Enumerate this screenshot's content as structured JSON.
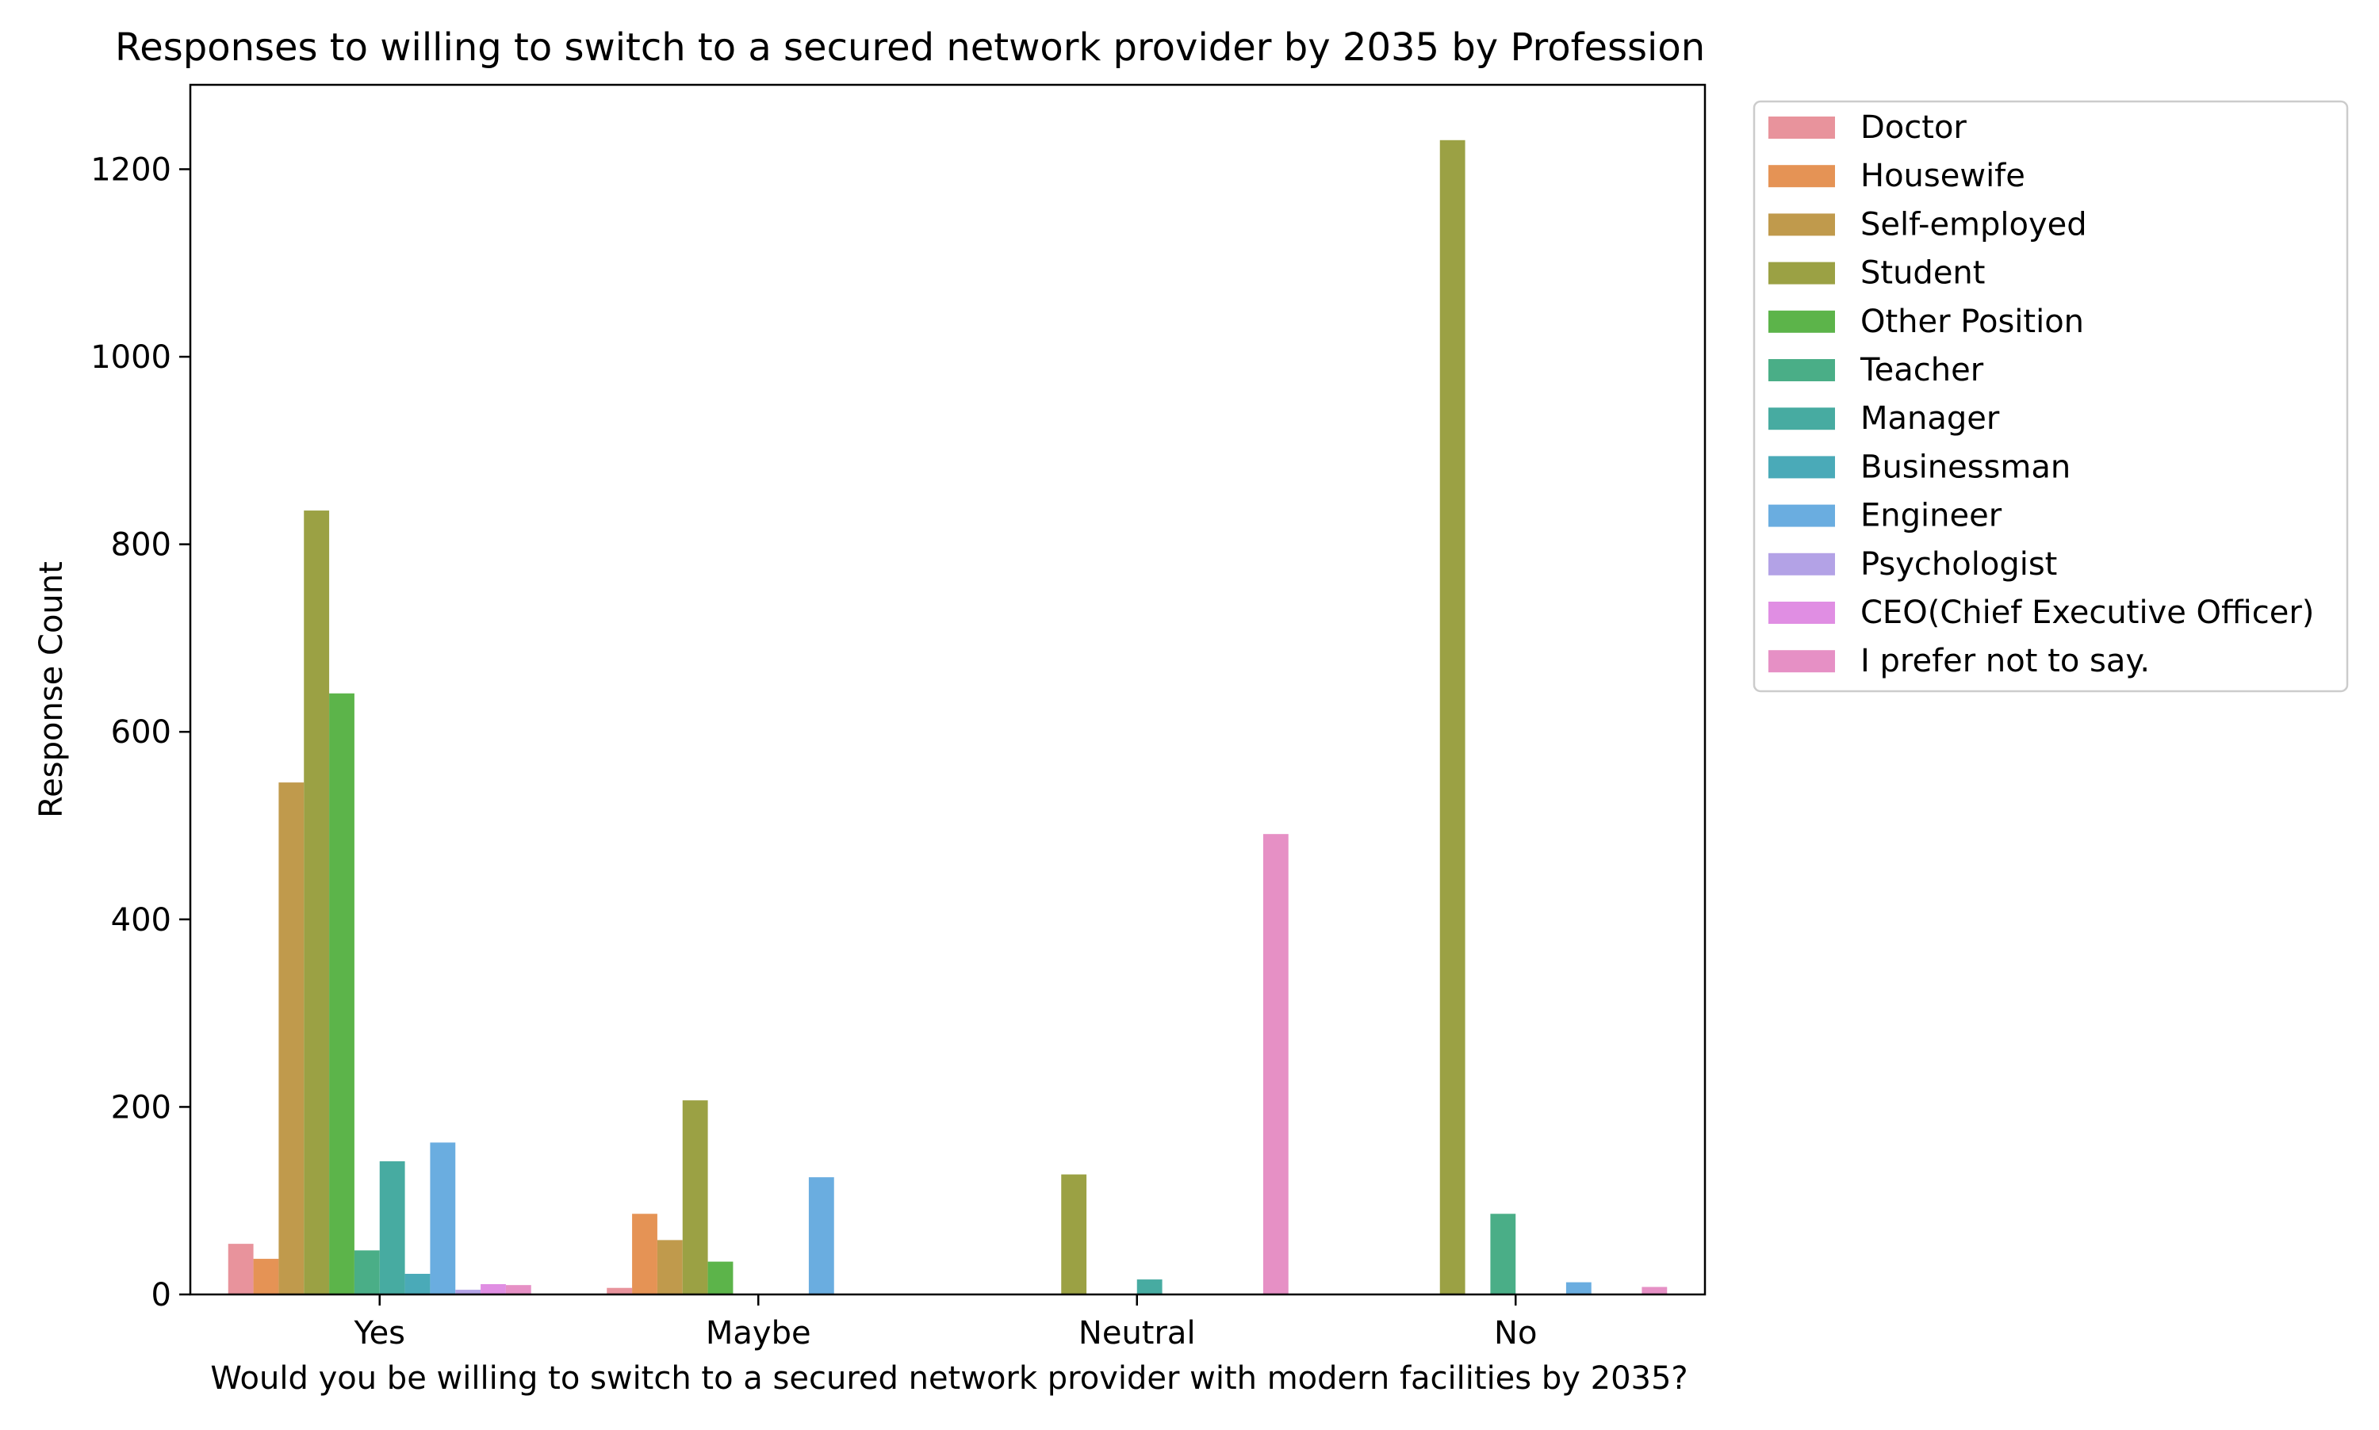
{
  "chart_data": {
    "type": "bar",
    "title": "Responses to willing to switch to a secured network provider by 2035 by Profession",
    "xlabel": "Would you be willing to switch to a secured network provider with modern facilities by 2035?",
    "ylabel": "Response Count",
    "ylim": [
      0,
      1290
    ],
    "yticks": [
      0,
      200,
      400,
      600,
      800,
      1000,
      1200
    ],
    "grid": false,
    "legend_position": "outside-top-right",
    "categories": [
      "Yes",
      "Maybe",
      "Neutral",
      "No"
    ],
    "series": [
      {
        "name": "Doctor",
        "color": "#e8939c",
        "values": [
          54,
          7,
          0,
          0
        ]
      },
      {
        "name": "Housewife",
        "color": "#e59355",
        "values": [
          38,
          86,
          0,
          0
        ]
      },
      {
        "name": "Self-employed",
        "color": "#c09a4c",
        "values": [
          546,
          58,
          0,
          0
        ]
      },
      {
        "name": "Student",
        "color": "#9ba144",
        "values": [
          836,
          207,
          128,
          1231
        ]
      },
      {
        "name": "Other Position",
        "color": "#5cb44a",
        "values": [
          641,
          35,
          0,
          0
        ]
      },
      {
        "name": "Teacher",
        "color": "#4aae87",
        "values": [
          47,
          0,
          0,
          86
        ]
      },
      {
        "name": "Manager",
        "color": "#47aba1",
        "values": [
          142,
          0,
          16,
          0
        ]
      },
      {
        "name": "Businessman",
        "color": "#4aaab8",
        "values": [
          22,
          0,
          0,
          0
        ]
      },
      {
        "name": "Engineer",
        "color": "#6aade0",
        "values": [
          162,
          125,
          0,
          13
        ]
      },
      {
        "name": "Psychologist",
        "color": "#b3a2e6",
        "values": [
          5,
          0,
          0,
          0
        ]
      },
      {
        "name": "CEO(Chief Executive Officer)",
        "color": "#e08ee3",
        "values": [
          11,
          0,
          0,
          0
        ]
      },
      {
        "name": "I prefer not to say.",
        "color": "#e690c5",
        "values": [
          10,
          0,
          491,
          8
        ]
      }
    ]
  }
}
